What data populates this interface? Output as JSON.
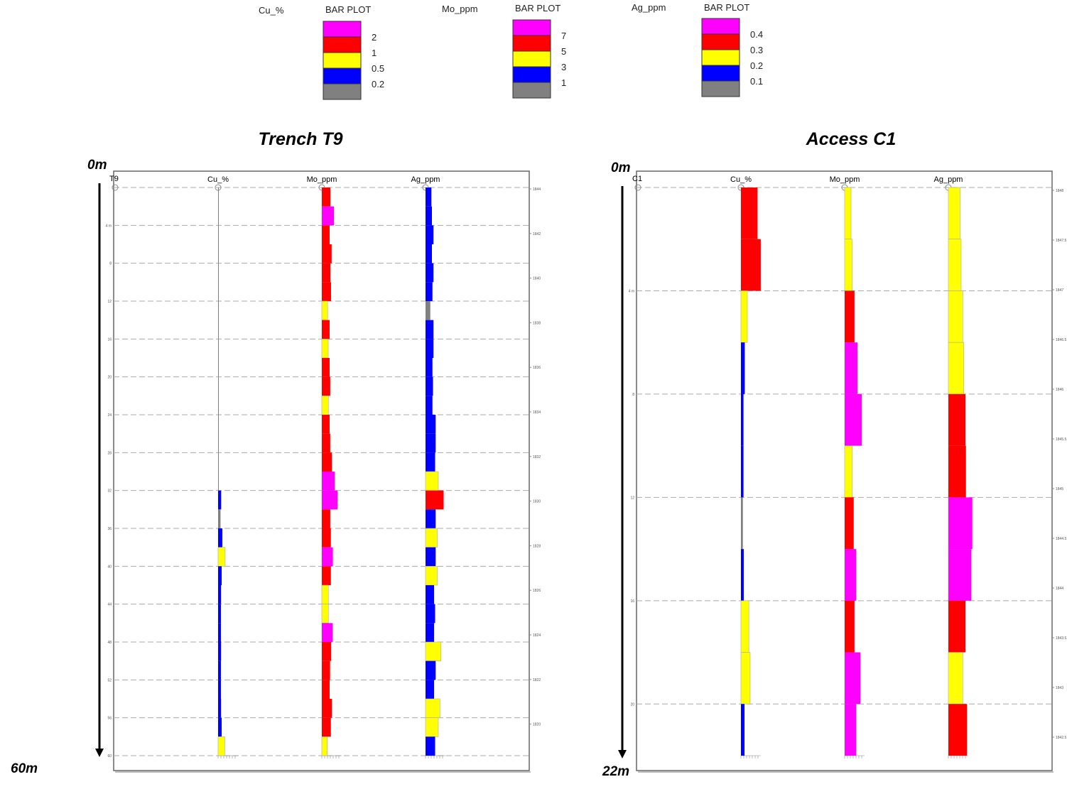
{
  "legend": [
    {
      "element": "Cu_%",
      "heading": "BAR PLOT",
      "labels": [
        "2",
        "1",
        "0.5",
        "0.2"
      ],
      "thresholds": [
        2,
        1,
        0.5,
        0.2
      ]
    },
    {
      "element": "Mo_ppm",
      "heading": "BAR PLOT",
      "labels": [
        "7",
        "5",
        "3",
        "1"
      ],
      "thresholds": [
        7,
        5,
        3,
        1
      ]
    },
    {
      "element": "Ag_ppm",
      "heading": "BAR PLOT",
      "labels": [
        "0.4",
        "0.3",
        "0.2",
        "0.1"
      ],
      "thresholds": [
        0.4,
        0.3,
        0.2,
        0.1
      ]
    }
  ],
  "colors": {
    "above_1": "#ff00ff",
    "above_2": "#ff0000",
    "above_3": "#ffff00",
    "above_4": "#0000ff",
    "below_4": "#808080"
  },
  "chart_data": [
    {
      "type": "bar",
      "orientation": "horizontal-downhole",
      "title": "Trench T9",
      "hole_label": "T9",
      "depth_start_label": "0m",
      "depth_end_label": "60m",
      "depth_range": [
        0,
        60
      ],
      "interval_m": 2,
      "depth_ticks": [
        "4 m",
        "8",
        "12",
        "16",
        "20",
        "24",
        "28",
        "32",
        "36",
        "40",
        "44",
        "48",
        "52",
        "56",
        "60"
      ],
      "elevation_ticks": [
        "1844",
        "1842",
        "1840",
        "1838",
        "1836",
        "1834",
        "1832",
        "1830",
        "1828",
        "1826",
        "1824",
        "1822",
        "1820"
      ],
      "grid": true,
      "series": [
        {
          "name": "Cu_%",
          "values": [
            0.03,
            0.03,
            0.03,
            0.03,
            0.03,
            0.03,
            0.03,
            0.03,
            0.03,
            0.03,
            0.03,
            0.03,
            0.03,
            0.03,
            0.03,
            0.03,
            0.24,
            0.19,
            0.33,
            0.55,
            0.28,
            0.23,
            0.22,
            0.22,
            0.23,
            0.22,
            0.22,
            0.23,
            0.28,
            0.52
          ]
        },
        {
          "name": "Mo_ppm",
          "values": [
            5.5,
            7.8,
            5.0,
            6.3,
            5.5,
            5.9,
            3.7,
            5.0,
            4.1,
            5.0,
            5.4,
            4.2,
            5.0,
            5.4,
            6.5,
            8.3,
            10.1,
            5.4,
            5.8,
            7.1,
            5.8,
            4.2,
            4.2,
            7.0,
            6.0,
            5.3,
            5.0,
            6.5,
            5.8,
            3.5
          ]
        },
        {
          "name": "Ag_ppm",
          "values": [
            0.11,
            0.12,
            0.15,
            0.12,
            0.15,
            0.13,
            0.09,
            0.15,
            0.15,
            0.13,
            0.14,
            0.13,
            0.19,
            0.19,
            0.18,
            0.24,
            0.34,
            0.19,
            0.22,
            0.19,
            0.22,
            0.16,
            0.18,
            0.16,
            0.29,
            0.19,
            0.16,
            0.27,
            0.24,
            0.18
          ]
        }
      ]
    },
    {
      "type": "bar",
      "orientation": "horizontal-downhole",
      "title": "Access C1",
      "hole_label": "C1",
      "depth_start_label": "0m",
      "depth_end_label": "22m",
      "depth_range": [
        0,
        22
      ],
      "interval_m": 2,
      "depth_ticks": [
        "4 m",
        "8",
        "12",
        "16",
        "20"
      ],
      "elevation_ticks": [
        "1848",
        "1847.5",
        "1847",
        "1846.5",
        "1846",
        "1845.5",
        "1845",
        "1844.5",
        "1844",
        "1843.5",
        "1843",
        "1842.5"
      ],
      "grid": true,
      "series": [
        {
          "name": "Cu_%",
          "values": [
            1.3,
            1.55,
            0.5,
            0.3,
            0.2,
            0.2,
            0.15,
            0.22,
            0.62,
            0.72,
            0.28
          ]
        },
        {
          "name": "Mo_ppm",
          "values": [
            4.1,
            4.8,
            6.3,
            8.2,
            10.9,
            4.8,
            5.8,
            7.4,
            6.3,
            10.1,
            7.4
          ]
        },
        {
          "name": "Ag_ppm",
          "values": [
            0.22,
            0.24,
            0.27,
            0.29,
            0.32,
            0.33,
            0.45,
            0.43,
            0.32,
            0.27,
            0.35
          ]
        }
      ]
    }
  ]
}
